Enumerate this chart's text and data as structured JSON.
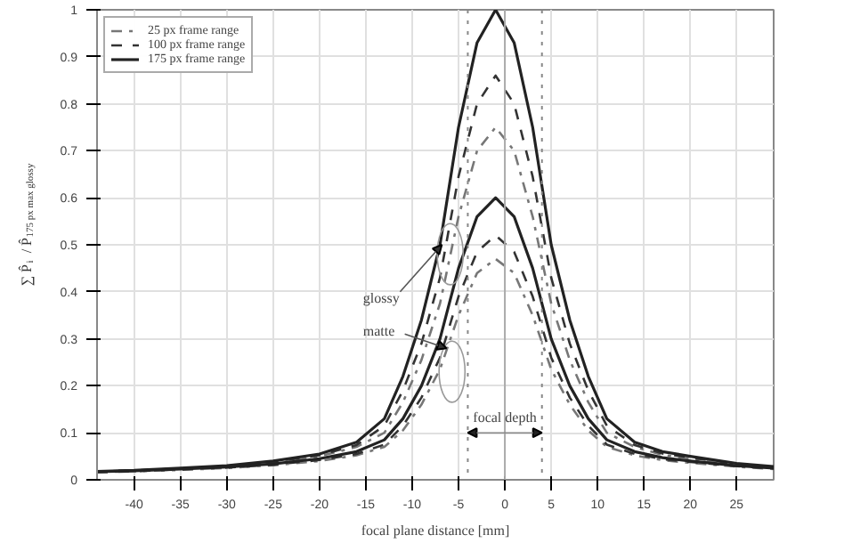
{
  "chart_data": {
    "type": "line",
    "xlabel": "focal plane distance [mm]",
    "ylabel": "∑ P̂$_{i}$ / P̂$_{175 px max glossy}$",
    "x": [
      -44,
      -40,
      -35,
      -30,
      -25,
      -20,
      -16,
      -13,
      -11,
      -9,
      -7,
      -5,
      -3,
      -1,
      1,
      3,
      5,
      7,
      9,
      11,
      14,
      17,
      20,
      25,
      29
    ],
    "series": [
      {
        "name": "25 px frame range",
        "color": "#777777",
        "line_style": "dashdot",
        "values": [
          0.017,
          0.019,
          0.023,
          0.028,
          0.036,
          0.05,
          0.07,
          0.1,
          0.165,
          0.255,
          0.375,
          0.56,
          0.7,
          0.75,
          0.7,
          0.56,
          0.375,
          0.255,
          0.165,
          0.1,
          0.07,
          0.053,
          0.045,
          0.033,
          0.026
        ]
      },
      {
        "name": "100 px frame range",
        "color": "#333333",
        "line_style": "dashed",
        "values": [
          0.018,
          0.02,
          0.024,
          0.029,
          0.038,
          0.052,
          0.074,
          0.115,
          0.19,
          0.29,
          0.43,
          0.645,
          0.8,
          0.86,
          0.8,
          0.645,
          0.43,
          0.29,
          0.19,
          0.115,
          0.074,
          0.056,
          0.047,
          0.034,
          0.027
        ]
      },
      {
        "name": "175 px frame range",
        "color": "#222222",
        "line_style": "solid",
        "values": [
          0.018,
          0.02,
          0.025,
          0.03,
          0.04,
          0.055,
          0.08,
          0.13,
          0.22,
          0.34,
          0.5,
          0.75,
          0.93,
          1.0,
          0.93,
          0.75,
          0.5,
          0.34,
          0.22,
          0.13,
          0.08,
          0.06,
          0.05,
          0.035,
          0.028
        ]
      },
      {
        "color": "#777777",
        "line_style": "dashdot",
        "values": [
          0.016,
          0.018,
          0.021,
          0.025,
          0.031,
          0.04,
          0.052,
          0.07,
          0.105,
          0.16,
          0.235,
          0.35,
          0.44,
          0.47,
          0.44,
          0.35,
          0.235,
          0.16,
          0.105,
          0.07,
          0.052,
          0.042,
          0.036,
          0.028,
          0.023
        ]
      },
      {
        "color": "#333333",
        "line_style": "dashed",
        "values": [
          0.016,
          0.018,
          0.022,
          0.026,
          0.032,
          0.042,
          0.055,
          0.075,
          0.115,
          0.175,
          0.26,
          0.39,
          0.485,
          0.52,
          0.485,
          0.39,
          0.26,
          0.175,
          0.115,
          0.075,
          0.055,
          0.044,
          0.038,
          0.029,
          0.024
        ]
      },
      {
        "color": "#222222",
        "line_style": "solid",
        "values": [
          0.017,
          0.019,
          0.023,
          0.027,
          0.034,
          0.045,
          0.06,
          0.085,
          0.13,
          0.2,
          0.3,
          0.45,
          0.56,
          0.6,
          0.56,
          0.45,
          0.3,
          0.2,
          0.13,
          0.085,
          0.06,
          0.047,
          0.04,
          0.03,
          0.025
        ]
      }
    ],
    "xlim": [
      -44,
      29
    ],
    "ylim": [
      0,
      1
    ],
    "xticks": [
      -40,
      -35,
      -30,
      -25,
      -20,
      -15,
      -10,
      -5,
      0,
      5,
      10,
      15,
      20,
      25
    ],
    "yticks": [
      0,
      0.1,
      0.2,
      0.3,
      0.4,
      0.5,
      0.6,
      0.7,
      0.8,
      0.9,
      1
    ],
    "grid": true,
    "legend": "top left",
    "ref_lines": [
      {
        "axis": "x",
        "value": -4,
        "line_style": "dotted",
        "color": "#888888"
      },
      {
        "axis": "x",
        "value": 4,
        "line_style": "dotted",
        "color": "#888888"
      },
      {
        "axis": "x",
        "value": 0,
        "line_style": "solid",
        "color": "#aaaaaa"
      }
    ],
    "annotations": [
      {
        "text": "glossy",
        "x": -6.8,
        "y": 0.5
      },
      {
        "text": "matte",
        "x": -6.3,
        "y": 0.28
      },
      {
        "text": "focal depth",
        "x": 0,
        "y": 0.1
      }
    ]
  }
}
